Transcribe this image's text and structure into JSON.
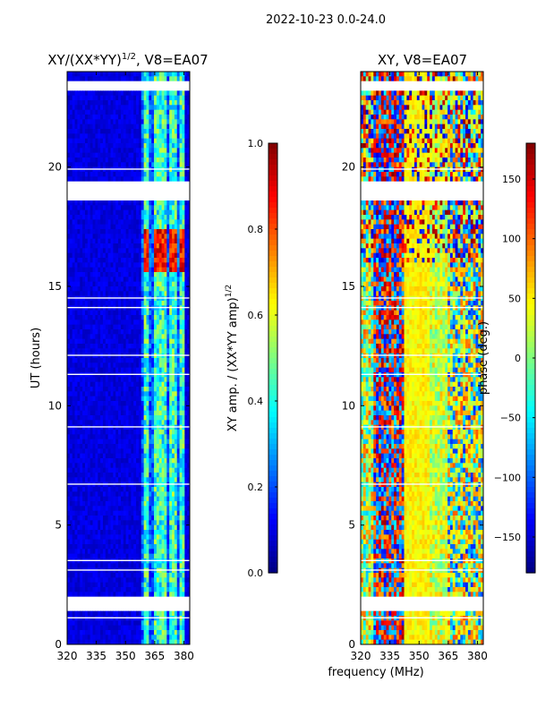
{
  "suptitle": "2022-10-23 0.0-24.0",
  "xlabel": "frequency (MHz)",
  "colors": {
    "jet": [
      "#00007f",
      "#0000ff",
      "#007fff",
      "#00ffff",
      "#7fff7f",
      "#ffff00",
      "#ff7f00",
      "#ff0000",
      "#7f0000"
    ],
    "gap": "#ffffff"
  },
  "chart_data": [
    {
      "type": "heatmap",
      "title_main": "XY/(XX*YY)",
      "title_sup": "1/2",
      "title_rest": ", V8=EA07",
      "ylabel": "UT (hours)",
      "xlim": [
        320,
        383
      ],
      "xticks": [
        "320",
        "335",
        "350",
        "365",
        "380"
      ],
      "xtick_values": [
        320,
        335,
        350,
        365,
        380
      ],
      "ylim": [
        0,
        24
      ],
      "yticks": [
        "0",
        "5",
        "10",
        "15",
        "20"
      ],
      "ytick_values": [
        0,
        5,
        10,
        15,
        20
      ],
      "colorbar": {
        "label_main": "XY amp. / (XX*YY amp)",
        "label_sup": "1/2",
        "range": [
          0.0,
          1.0
        ],
        "ticks": [
          "0.0",
          "0.2",
          "0.4",
          "0.6",
          "0.8",
          "1.0"
        ],
        "tick_values": [
          0.0,
          0.2,
          0.4,
          0.6,
          0.8,
          1.0
        ]
      },
      "bright_channels_mhz": [
        {
          "from": 360,
          "to": 362
        },
        {
          "from": 364,
          "to": 368
        },
        {
          "from": 369,
          "to": 371
        },
        {
          "from": 373,
          "to": 376
        },
        {
          "from": 378,
          "to": 380
        }
      ],
      "hot_interval_hours": [
        15.6,
        17.3
      ],
      "gap_intervals_hours": [
        [
          1.4,
          1.9
        ],
        [
          18.6,
          19.4
        ],
        [
          23.2,
          23.5
        ]
      ]
    },
    {
      "type": "heatmap",
      "title": "XY, V8=EA07",
      "xlim": [
        320,
        383
      ],
      "xticks": [
        "320",
        "335",
        "350",
        "365",
        "380"
      ],
      "xtick_values": [
        320,
        335,
        350,
        365,
        380
      ],
      "ylim": [
        0,
        24
      ],
      "yticks": [
        "0",
        "5",
        "10",
        "15",
        "20"
      ],
      "ytick_values": [
        0,
        5,
        10,
        15,
        20
      ],
      "colorbar": {
        "label": "phase (deg.)",
        "range": [
          -180,
          180
        ],
        "ticks": [
          "−150",
          "−100",
          "−50",
          "0",
          "50",
          "100",
          "150"
        ],
        "tick_values": [
          -150,
          -100,
          -50,
          0,
          50,
          100,
          150
        ]
      },
      "gap_intervals_hours": [
        [
          1.4,
          1.9
        ],
        [
          18.6,
          19.4
        ],
        [
          23.2,
          23.5
        ]
      ]
    }
  ]
}
